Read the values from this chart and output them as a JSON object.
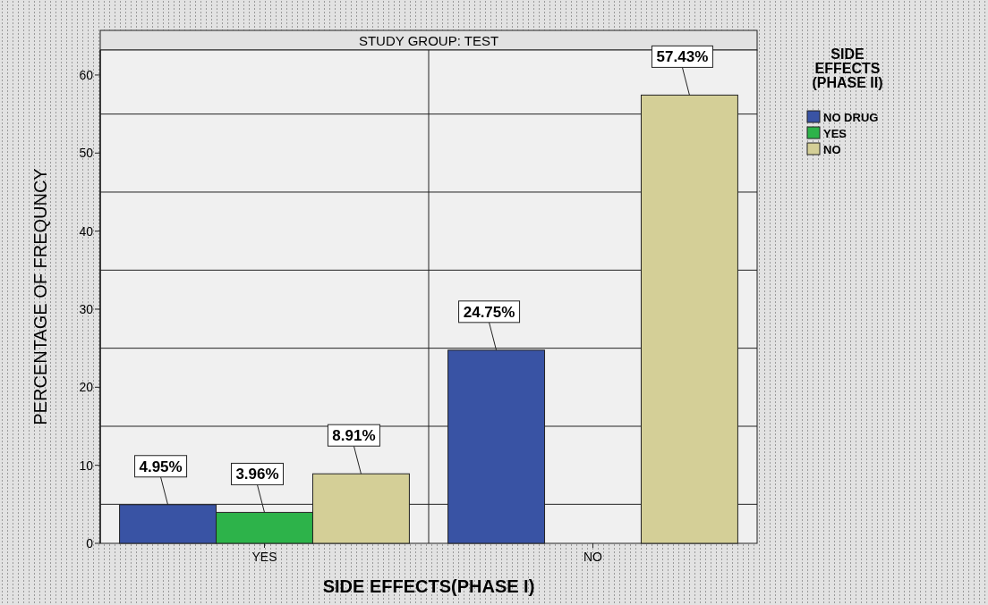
{
  "chart_data": {
    "type": "bar",
    "title": "STUDY GROUP: TEST",
    "xlabel": "SIDE EFFECTS(PHASE I)",
    "ylabel": "PERCENTAGE OF FREQUNCY",
    "legend_title": "SIDE EFFECTS (PHASE II)",
    "categories": [
      "YES",
      "NO"
    ],
    "series": [
      {
        "name": "NO DRUG",
        "color": "#3953a4",
        "values": [
          4.95,
          24.75
        ],
        "value_labels": [
          "4.95%",
          "24.75%"
        ]
      },
      {
        "name": "YES",
        "color": "#2db34a",
        "values": [
          3.96,
          null
        ],
        "value_labels": [
          "3.96%",
          null
        ]
      },
      {
        "name": "NO",
        "color": "#d4cf97",
        "values": [
          8.91,
          57.43
        ],
        "value_labels": [
          "8.91%",
          "57.43%"
        ]
      }
    ],
    "ylim": [
      0,
      63.2
    ],
    "yticks": [
      0,
      {
        "value": 5,
        "label": null
      },
      10,
      {
        "value": 15,
        "label": null
      },
      20,
      {
        "value": 25,
        "label": null
      },
      30,
      {
        "value": 35,
        "label": null
      },
      40,
      {
        "value": 45,
        "label": null
      },
      50,
      {
        "value": 55,
        "label": null
      },
      60
    ],
    "grid": true,
    "legend": "right"
  }
}
